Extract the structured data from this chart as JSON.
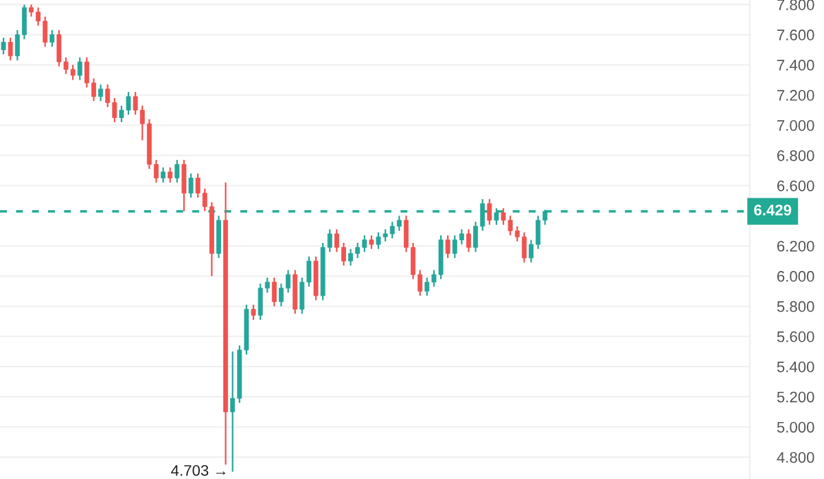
{
  "chart_data": {
    "type": "candlestick",
    "categories": [
      null,
      null,
      null,
      null,
      null,
      null,
      null,
      null,
      null,
      null,
      null,
      null,
      null,
      null,
      null,
      null,
      null,
      null,
      null,
      null,
      null,
      null,
      null,
      null,
      null,
      null,
      null,
      null,
      null,
      null,
      null,
      null,
      null,
      null,
      null,
      null,
      null,
      null,
      null,
      null,
      null,
      null,
      null,
      null,
      null,
      null,
      null,
      null,
      null,
      null,
      null,
      null,
      null,
      null,
      null,
      null,
      null,
      null,
      null,
      null,
      null,
      null,
      null,
      null,
      null,
      null,
      null,
      null,
      null,
      null,
      null,
      null,
      null,
      null,
      null,
      null,
      null,
      null,
      null,
      null,
      null,
      null,
      null,
      null,
      null,
      null,
      null,
      null,
      null,
      null,
      null,
      null,
      null,
      null,
      null,
      null,
      null,
      null,
      null,
      null,
      null,
      null,
      null,
      null,
      null,
      null,
      null,
      null
    ],
    "ohlc": [
      [
        7.5,
        7.58,
        7.47,
        7.55
      ],
      [
        7.55,
        7.58,
        7.43,
        7.46
      ],
      [
        7.46,
        7.63,
        7.43,
        7.6
      ],
      [
        7.6,
        7.8,
        7.57,
        7.78
      ],
      [
        7.78,
        7.8,
        7.72,
        7.75
      ],
      [
        7.75,
        7.78,
        7.66,
        7.69
      ],
      [
        7.69,
        7.72,
        7.52,
        7.55
      ],
      [
        7.55,
        7.63,
        7.52,
        7.6
      ],
      [
        7.6,
        7.63,
        7.39,
        7.42
      ],
      [
        7.42,
        7.45,
        7.34,
        7.37
      ],
      [
        7.37,
        7.4,
        7.3,
        7.33
      ],
      [
        7.33,
        7.45,
        7.3,
        7.42
      ],
      [
        7.42,
        7.45,
        7.25,
        7.28
      ],
      [
        7.28,
        7.31,
        7.16,
        7.19
      ],
      [
        7.19,
        7.27,
        7.16,
        7.24
      ],
      [
        7.24,
        7.27,
        7.12,
        7.15
      ],
      [
        7.15,
        7.18,
        7.02,
        7.05
      ],
      [
        7.05,
        7.13,
        7.02,
        7.1
      ],
      [
        7.1,
        7.22,
        7.07,
        7.19
      ],
      [
        7.19,
        7.22,
        7.07,
        7.1
      ],
      [
        7.1,
        7.13,
        6.9,
        7.01
      ],
      [
        7.01,
        7.04,
        6.71,
        6.74
      ],
      [
        6.74,
        6.77,
        6.62,
        6.65
      ],
      [
        6.65,
        6.72,
        6.62,
        6.69
      ],
      [
        6.69,
        6.72,
        6.62,
        6.65
      ],
      [
        6.65,
        6.77,
        6.62,
        6.74
      ],
      [
        6.74,
        6.77,
        6.43,
        6.55
      ],
      [
        6.55,
        6.68,
        6.52,
        6.65
      ],
      [
        6.65,
        6.68,
        6.52,
        6.55
      ],
      [
        6.55,
        6.58,
        6.43,
        6.46
      ],
      [
        6.46,
        6.49,
        6.0,
        6.15
      ],
      [
        6.15,
        6.4,
        6.12,
        6.37
      ],
      [
        6.37,
        6.62,
        4.75,
        5.1
      ],
      [
        5.1,
        5.5,
        4.703,
        5.19
      ],
      [
        5.19,
        5.54,
        5.16,
        5.51
      ],
      [
        5.51,
        5.81,
        5.48,
        5.78
      ],
      [
        5.78,
        5.81,
        5.71,
        5.74
      ],
      [
        5.74,
        5.95,
        5.71,
        5.92
      ],
      [
        5.92,
        5.99,
        5.89,
        5.96
      ],
      [
        5.96,
        5.99,
        5.8,
        5.83
      ],
      [
        5.83,
        5.95,
        5.8,
        5.92
      ],
      [
        5.92,
        6.04,
        5.89,
        6.01
      ],
      [
        6.01,
        6.04,
        5.75,
        5.78
      ],
      [
        5.78,
        5.99,
        5.75,
        5.96
      ],
      [
        5.96,
        6.13,
        5.93,
        6.1
      ],
      [
        6.1,
        6.13,
        5.84,
        5.87
      ],
      [
        5.87,
        6.22,
        5.84,
        6.19
      ],
      [
        6.19,
        6.31,
        6.16,
        6.28
      ],
      [
        6.28,
        6.31,
        6.16,
        6.19
      ],
      [
        6.19,
        6.22,
        6.07,
        6.1
      ],
      [
        6.1,
        6.18,
        6.07,
        6.15
      ],
      [
        6.15,
        6.22,
        6.12,
        6.19
      ],
      [
        6.19,
        6.27,
        6.16,
        6.24
      ],
      [
        6.24,
        6.27,
        6.18,
        6.21
      ],
      [
        6.21,
        6.29,
        6.18,
        6.26
      ],
      [
        6.26,
        6.31,
        6.23,
        6.28
      ],
      [
        6.28,
        6.36,
        6.25,
        6.33
      ],
      [
        6.33,
        6.4,
        6.3,
        6.37
      ],
      [
        6.37,
        6.4,
        6.16,
        6.19
      ],
      [
        6.19,
        6.22,
        5.98,
        6.01
      ],
      [
        6.01,
        6.04,
        5.87,
        5.9
      ],
      [
        5.9,
        5.99,
        5.87,
        5.96
      ],
      [
        5.96,
        6.04,
        5.93,
        6.01
      ],
      [
        6.01,
        6.27,
        5.98,
        6.24
      ],
      [
        6.24,
        6.27,
        6.12,
        6.15
      ],
      [
        6.15,
        6.27,
        6.12,
        6.24
      ],
      [
        6.24,
        6.31,
        6.21,
        6.28
      ],
      [
        6.28,
        6.31,
        6.16,
        6.19
      ],
      [
        6.19,
        6.36,
        6.16,
        6.33
      ],
      [
        6.33,
        6.51,
        6.3,
        6.48
      ],
      [
        6.48,
        6.51,
        6.34,
        6.37
      ],
      [
        6.37,
        6.45,
        6.34,
        6.42
      ],
      [
        6.42,
        6.45,
        6.34,
        6.37
      ],
      [
        6.37,
        6.4,
        6.27,
        6.3
      ],
      [
        6.3,
        6.33,
        6.23,
        6.26
      ],
      [
        6.26,
        6.29,
        6.09,
        6.12
      ],
      [
        6.12,
        6.24,
        6.09,
        6.21
      ],
      [
        6.21,
        6.4,
        6.18,
        6.37
      ],
      [
        6.37,
        6.44,
        6.34,
        6.429
      ],
      null,
      null,
      null,
      null,
      null,
      null,
      null,
      null,
      null,
      null,
      null,
      null,
      null,
      null,
      null,
      null,
      null,
      null,
      null,
      null,
      null,
      null,
      null,
      null,
      null,
      null,
      null,
      null,
      null
    ],
    "colors": [
      "#26a69a",
      "#ef5350",
      "#26a69a",
      "#26a69a",
      "#ef5350",
      "#ef5350",
      "#ef5350",
      "#26a69a",
      "#ef5350",
      "#ef5350",
      "#ef5350",
      "#26a69a",
      "#ef5350",
      "#ef5350",
      "#26a69a",
      "#ef5350",
      "#ef5350",
      "#26a69a",
      "#26a69a",
      "#ef5350",
      "#ef5350",
      "#ef5350",
      "#ef5350",
      "#26a69a",
      "#ef5350",
      "#26a69a",
      "#ef5350",
      "#26a69a",
      "#ef5350",
      "#ef5350",
      "#ef5350",
      "#26a69a",
      "#ef5350",
      "#26a69a",
      "#26a69a",
      "#26a69a",
      "#ef5350",
      "#26a69a",
      "#26a69a",
      "#ef5350",
      "#26a69a",
      "#26a69a",
      "#ef5350",
      "#26a69a",
      "#26a69a",
      "#ef5350",
      "#26a69a",
      "#26a69a",
      "#ef5350",
      "#ef5350",
      "#26a69a",
      "#26a69a",
      "#26a69a",
      "#ef5350",
      "#26a69a",
      "#26a69a",
      "#26a69a",
      "#26a69a",
      "#ef5350",
      "#ef5350",
      "#ef5350",
      "#26a69a",
      "#26a69a",
      "#26a69a",
      "#ef5350",
      "#26a69a",
      "#26a69a",
      "#ef5350",
      "#26a69a",
      "#26a69a",
      "#ef5350",
      "#26a69a",
      "#ef5350",
      "#ef5350",
      "#ef5350",
      "#ef5350",
      "#26a69a",
      "#26a69a",
      "#26a69a",
      null,
      null,
      null,
      null,
      null,
      null,
      null,
      null,
      null,
      null,
      null,
      null,
      null,
      null,
      null,
      null,
      null,
      null,
      null,
      null,
      null,
      null,
      null,
      null,
      null,
      null,
      null,
      null,
      null
    ],
    "ylim": [
      4.655,
      7.83
    ],
    "yticks": [
      {
        "value": 4.8,
        "label": "4.800"
      },
      {
        "value": 5.0,
        "label": "5.000"
      },
      {
        "value": 5.2,
        "label": "5.200"
      },
      {
        "value": 5.4,
        "label": "5.400"
      },
      {
        "value": 5.6,
        "label": "5.600"
      },
      {
        "value": 5.8,
        "label": "5.800"
      },
      {
        "value": 6.0,
        "label": "6.000"
      },
      {
        "value": 6.2,
        "label": "6.200"
      },
      {
        "value": 6.6,
        "label": "6.600"
      },
      {
        "value": 6.8,
        "label": "6.800"
      },
      {
        "value": 7.0,
        "label": "7.000"
      },
      {
        "value": 7.2,
        "label": "7.200"
      },
      {
        "value": 7.4,
        "label": "7.400"
      },
      {
        "value": 7.6,
        "label": "7.600"
      },
      {
        "value": 7.8,
        "label": "7.800"
      }
    ],
    "ref_lines": [
      {
        "axis": "y",
        "value": 6.429,
        "label": "6.429",
        "color": "#22ab94",
        "line_style": "dashed"
      }
    ],
    "annotations": [
      "4.703 →"
    ],
    "grid": "y"
  }
}
